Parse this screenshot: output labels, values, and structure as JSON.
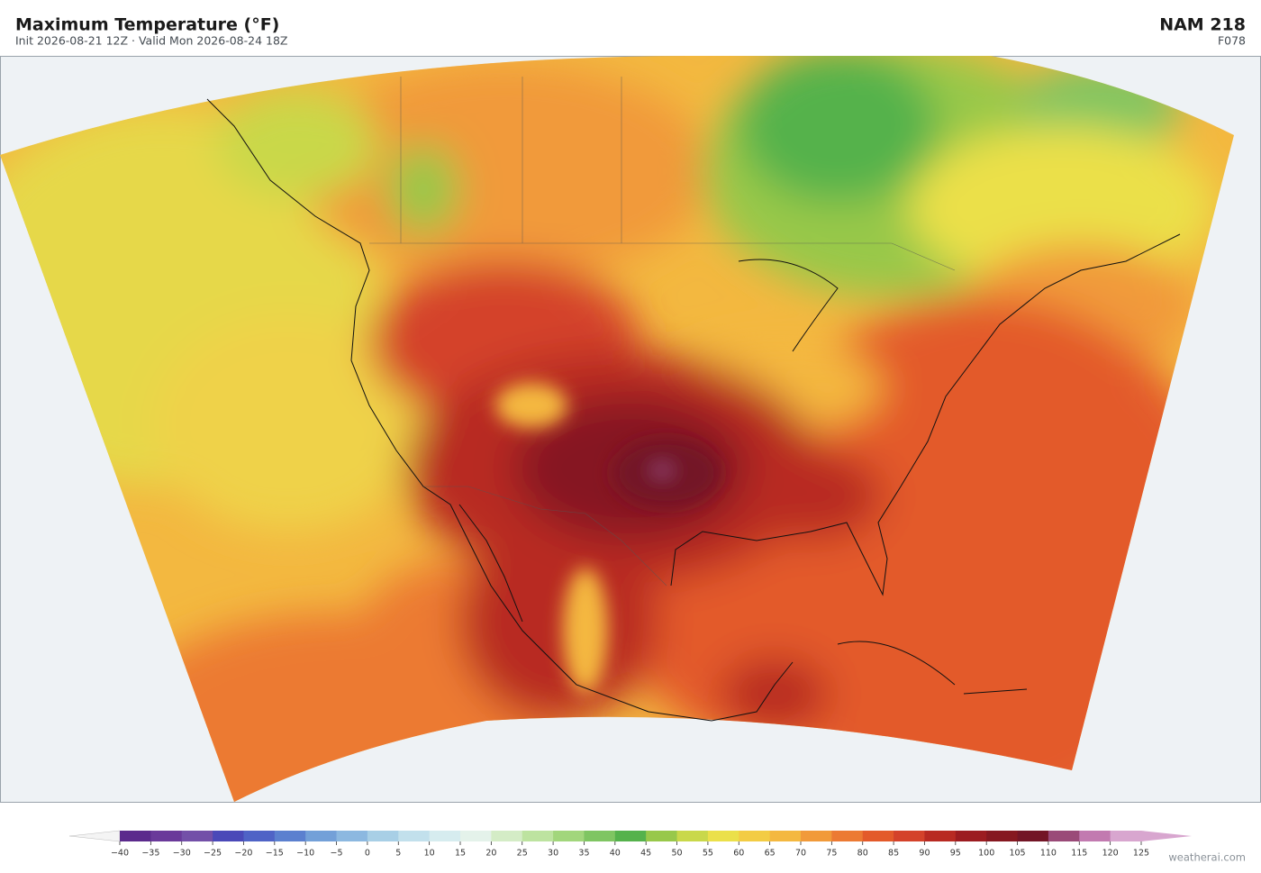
{
  "header": {
    "title": "Maximum Temperature  (°F)",
    "subtitle": "Init 2026-08-21 12Z  ·  Valid Mon 2026-08-24 18Z",
    "model": "NAM  218",
    "forecast_hour": "F078"
  },
  "colorbar": {
    "ticks": [
      {
        "value": -40,
        "label": "−40"
      },
      {
        "value": -35,
        "label": "−35"
      },
      {
        "value": -30,
        "label": "−30"
      },
      {
        "value": -25,
        "label": "−25"
      },
      {
        "value": -20,
        "label": "−20"
      },
      {
        "value": -15,
        "label": "−15"
      },
      {
        "value": -10,
        "label": "−10"
      },
      {
        "value": -5,
        "label": "−5"
      },
      0,
      5,
      10,
      15,
      20,
      25,
      30,
      35,
      40,
      45,
      50,
      55,
      60,
      65,
      70,
      75,
      80,
      85,
      90,
      95,
      100,
      105,
      110,
      115,
      120,
      125
    ],
    "colors": [
      "#5b2a8c",
      "#6a3a9a",
      "#7350a8",
      "#4a49b8",
      "#4f63c6",
      "#5b80cf",
      "#73a0d8",
      "#8cb8e0",
      "#a8cfe6",
      "#c2e0ec",
      "#d6ecef",
      "#e4f2ea",
      "#d4ecc6",
      "#bde3a0",
      "#a2d67c",
      "#7fc562",
      "#55b24c",
      "#98c84a",
      "#c9d84a",
      "#ebe04a",
      "#f3cc44",
      "#f4b840",
      "#f19a3a",
      "#ec7a33",
      "#e35a2a",
      "#d4422a",
      "#b82a22",
      "#9c1c20",
      "#861820",
      "#731526",
      "#9a4a78",
      "#c27ab0",
      "#d8a6cf"
    ],
    "under_color": "#f4f4f4",
    "over_color": "#d8a6cf"
  },
  "watermark": "weatherai.com"
}
